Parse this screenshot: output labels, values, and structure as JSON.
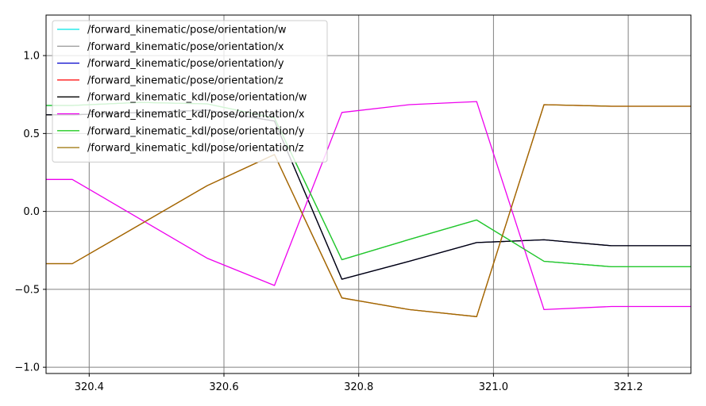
{
  "chart_data": {
    "type": "line",
    "title": "",
    "xlabel": "",
    "ylabel": "",
    "xlim": [
      320.336,
      321.293
    ],
    "ylim": [
      -1.04,
      1.26
    ],
    "grid": true,
    "grid_color": "#808080",
    "legend_placement": "top-left",
    "x_ticks": [
      320.4,
      320.6,
      320.8,
      321.0,
      321.2
    ],
    "x_tick_labels": [
      "320.4",
      "320.6",
      "320.8",
      "321.0",
      "321.2"
    ],
    "y_ticks": [
      1.0,
      0.5,
      0.0,
      -0.5,
      -1.0
    ],
    "y_tick_labels": [
      "1.0",
      "0.5",
      "0.0",
      "−0.5",
      "−1.0"
    ],
    "series": [
      {
        "name": "/forward_kinematic/pose/orientation/w",
        "color": "#00e5e5",
        "x": [
          320.2,
          320.375,
          320.475,
          320.575,
          320.675,
          320.775,
          320.875,
          320.975,
          321.075,
          321.175,
          321.3
        ],
        "y": [
          0.68,
          0.68,
          0.7,
          0.69,
          0.6,
          -0.31,
          -0.18,
          -0.055,
          -0.32,
          -0.355,
          -0.355
        ]
      },
      {
        "name": "/forward_kinematic/pose/orientation/x",
        "color": "#a0a0a0",
        "x": [
          320.2,
          320.375,
          320.475,
          320.575,
          320.675,
          320.775,
          320.875,
          320.975,
          321.075,
          321.175,
          321.3
        ],
        "y": [
          0.68,
          0.68,
          0.7,
          0.69,
          0.6,
          -0.31,
          -0.18,
          -0.055,
          -0.32,
          -0.355,
          -0.355
        ]
      },
      {
        "name": "/forward_kinematic/pose/orientation/y",
        "color": "#0000cc",
        "x": [
          320.2,
          320.375,
          320.575,
          320.675,
          320.775,
          320.875,
          320.975,
          321.075,
          321.175,
          321.3
        ],
        "y": [
          0.62,
          0.62,
          0.65,
          0.58,
          -0.435,
          -0.32,
          -0.2,
          -0.182,
          -0.22,
          -0.22
        ]
      },
      {
        "name": "/forward_kinematic/pose/orientation/z",
        "color": "#ff0000",
        "x": [
          320.2,
          320.375,
          320.575,
          320.675,
          320.775,
          320.875,
          320.975,
          321.075,
          321.175,
          321.3
        ],
        "y": [
          -0.335,
          -0.335,
          0.165,
          0.365,
          -0.555,
          -0.63,
          -0.675,
          0.685,
          0.675,
          0.675
        ]
      },
      {
        "name": "/forward_kinematic_kdl/pose/orientation/w",
        "color": "#000000",
        "x": [
          320.2,
          320.375,
          320.575,
          320.675,
          320.775,
          320.875,
          320.975,
          321.075,
          321.175,
          321.3
        ],
        "y": [
          0.62,
          0.62,
          0.65,
          0.58,
          -0.435,
          -0.32,
          -0.2,
          -0.182,
          -0.22,
          -0.22
        ]
      },
      {
        "name": "/forward_kinematic_kdl/pose/orientation/x",
        "color": "#ee00ee",
        "x": [
          320.2,
          320.375,
          320.575,
          320.675,
          320.775,
          320.875,
          320.975,
          321.075,
          321.175,
          321.3
        ],
        "y": [
          0.205,
          0.205,
          -0.3,
          -0.475,
          0.635,
          0.685,
          0.705,
          -0.63,
          -0.61,
          -0.61
        ]
      },
      {
        "name": "/forward_kinematic_kdl/pose/orientation/y",
        "color": "#22cc22",
        "x": [
          320.2,
          320.375,
          320.475,
          320.575,
          320.675,
          320.775,
          320.875,
          320.975,
          321.075,
          321.175,
          321.3
        ],
        "y": [
          0.68,
          0.68,
          0.7,
          0.69,
          0.6,
          -0.31,
          -0.18,
          -0.055,
          -0.32,
          -0.355,
          -0.355
        ]
      },
      {
        "name": "/forward_kinematic_kdl/pose/orientation/z",
        "color": "#997000",
        "x": [
          320.2,
          320.375,
          320.575,
          320.675,
          320.775,
          320.875,
          320.975,
          321.075,
          321.175,
          321.3
        ],
        "y": [
          -0.335,
          -0.335,
          0.165,
          0.365,
          -0.555,
          -0.63,
          -0.675,
          0.685,
          0.675,
          0.675
        ]
      }
    ]
  }
}
